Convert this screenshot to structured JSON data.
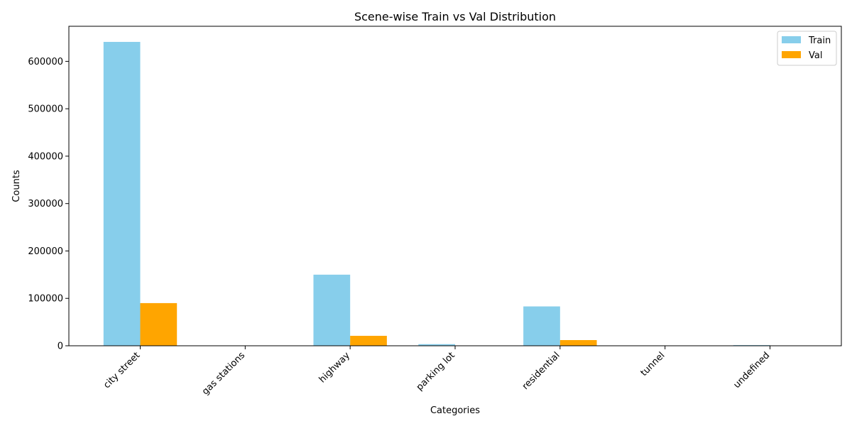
{
  "chart_data": {
    "type": "bar",
    "title": "Scene-wise Train vs Val Distribution",
    "xlabel": "Categories",
    "ylabel": "Counts",
    "categories": [
      "city street",
      "gas stations",
      "highway",
      "parking lot",
      "residential",
      "tunnel",
      "undefined"
    ],
    "series": [
      {
        "name": "Train",
        "color": "#87CEEB",
        "values": [
          641000,
          120,
          150000,
          3400,
          83000,
          300,
          1400
        ]
      },
      {
        "name": "Val",
        "color": "#FFA500",
        "values": [
          90000,
          20,
          21000,
          500,
          12000,
          30,
          200
        ]
      }
    ],
    "ylim": [
      0,
      674000
    ],
    "yticks": [
      0,
      100000,
      200000,
      300000,
      400000,
      500000,
      600000
    ],
    "ytick_labels": [
      "0",
      "100000",
      "200000",
      "300000",
      "400000",
      "500000",
      "600000"
    ],
    "legend_position": "top-right",
    "grid": false
  }
}
